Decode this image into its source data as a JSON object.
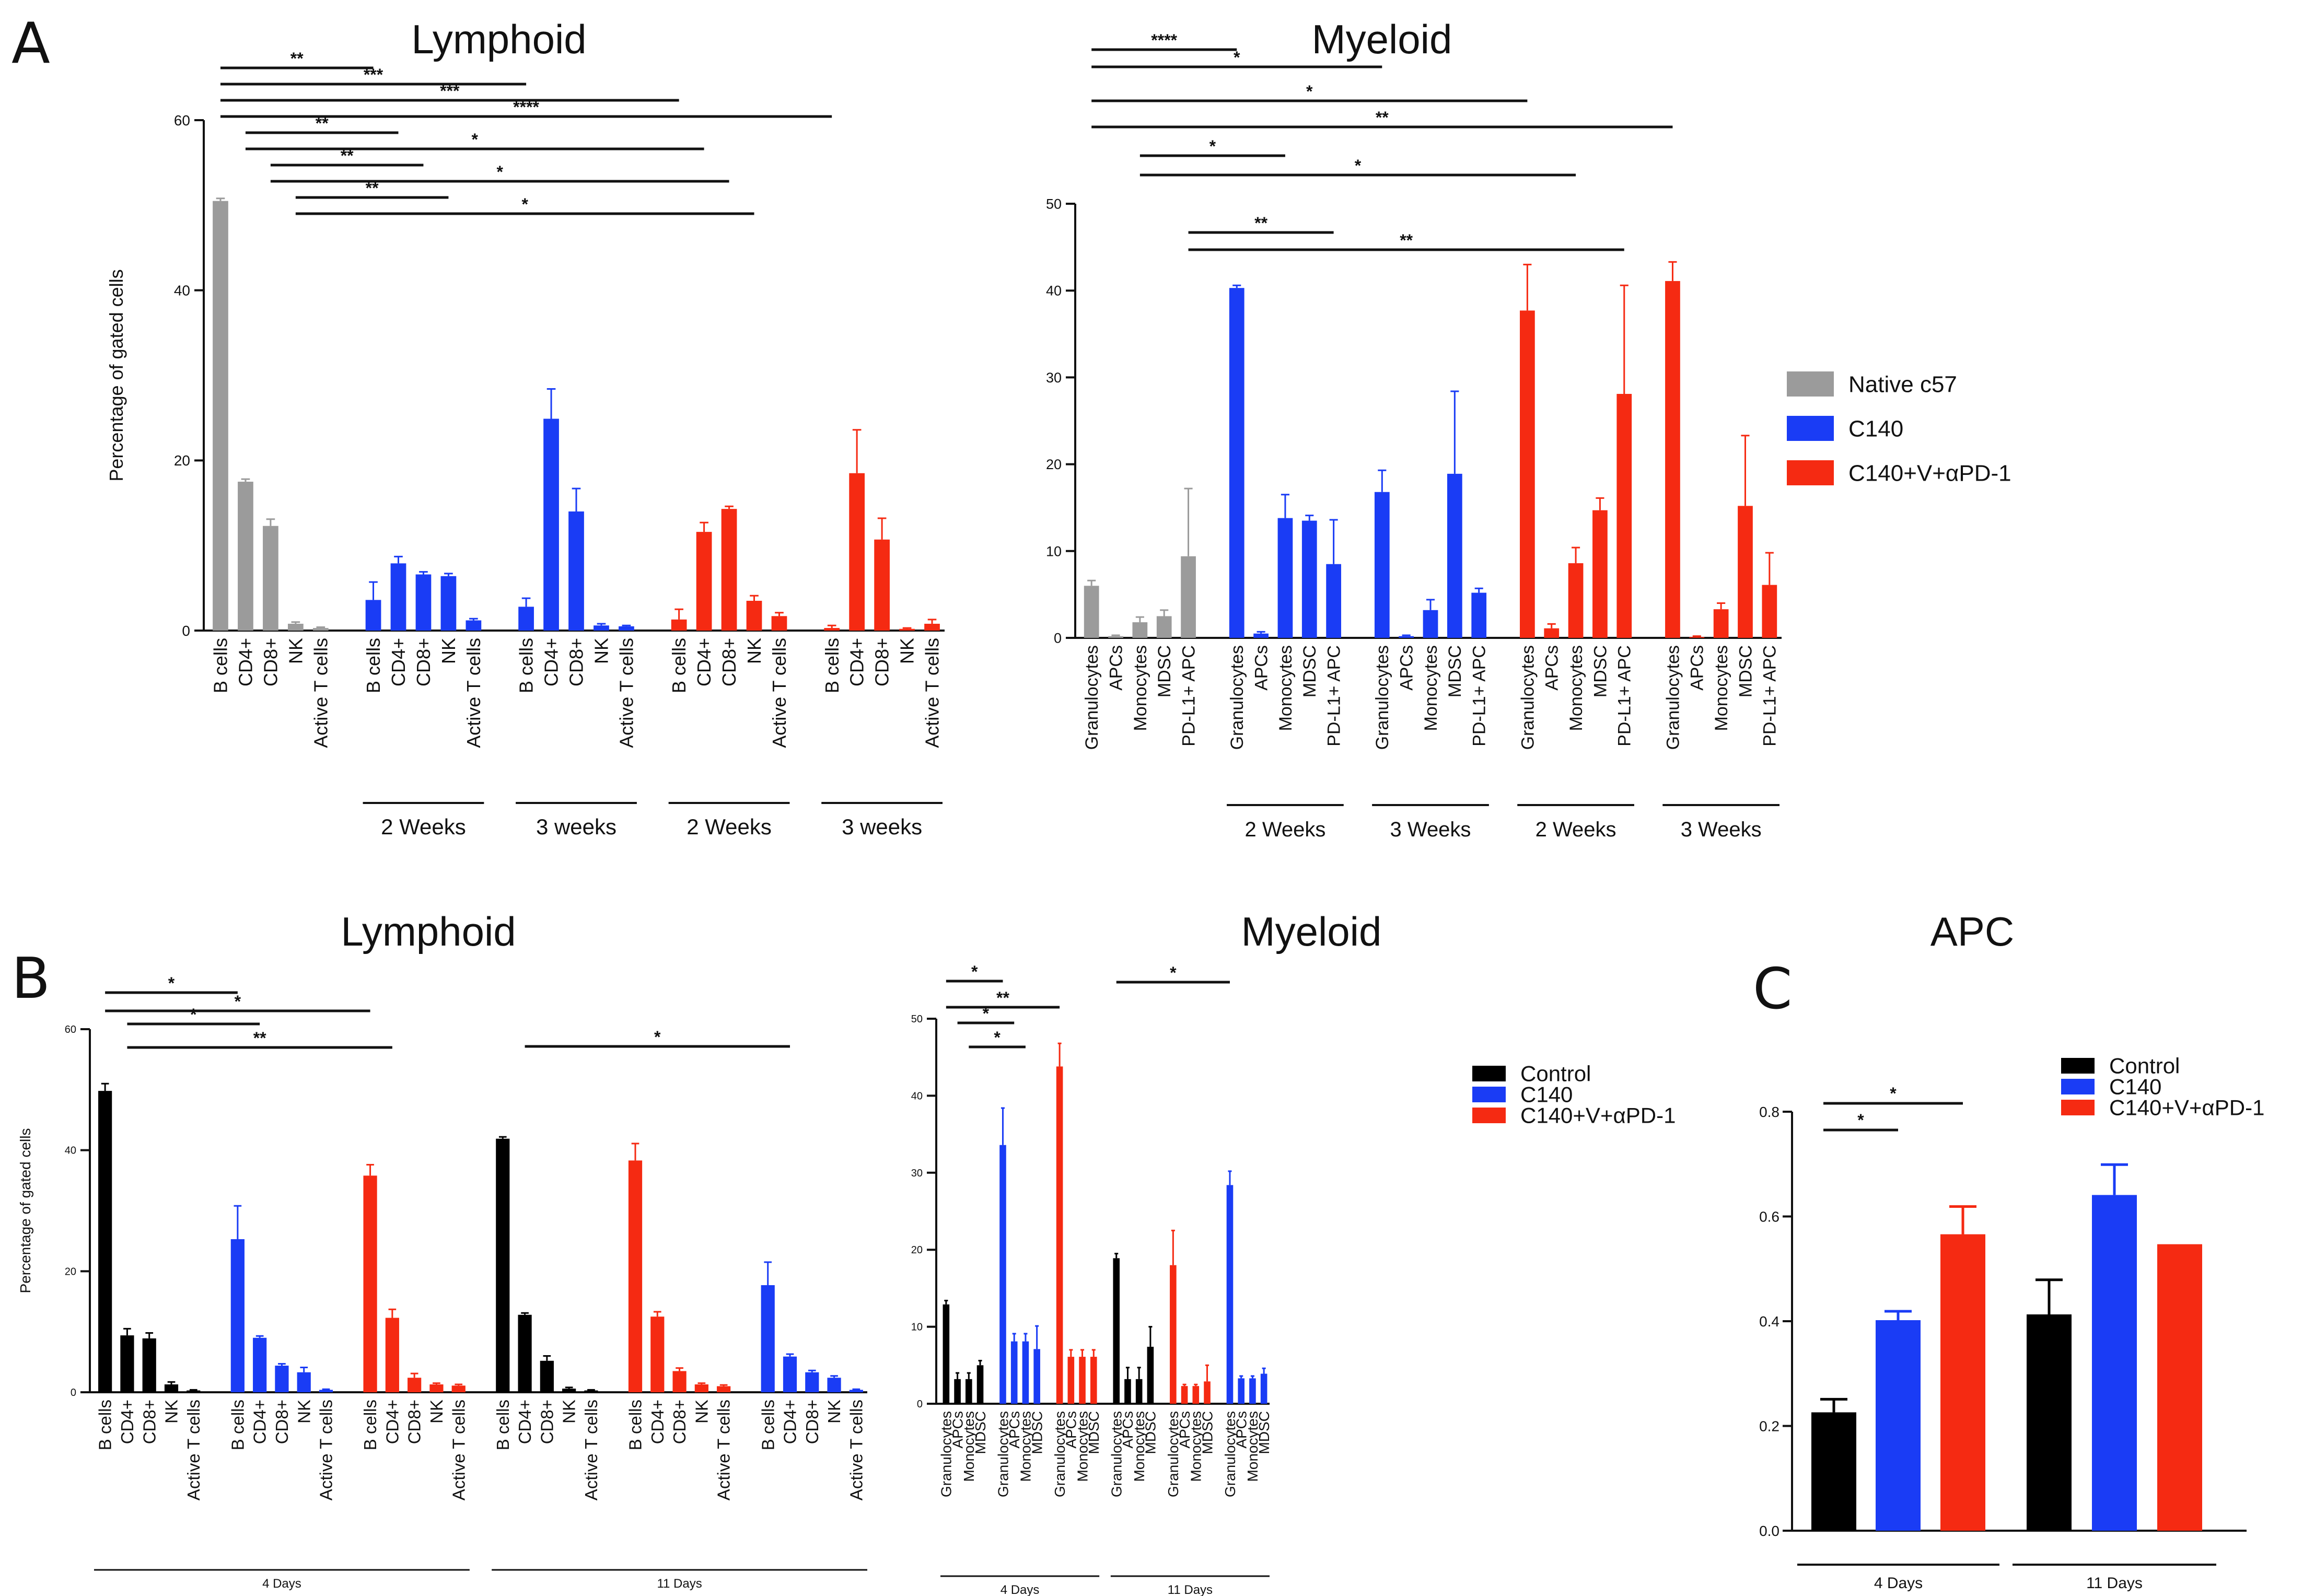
{
  "panels": {
    "a": "A",
    "b": "B",
    "c": "C"
  },
  "colors": {
    "native": "#9b9b9b",
    "control": "#000000",
    "c140": "#1a3cf5",
    "combo": "#f52a12"
  },
  "legend_a": [
    {
      "label": "Native c57",
      "color": "#9b9b9b"
    },
    {
      "label": "C140",
      "color": "#1a3cf5"
    },
    {
      "label": "C140+V+αPD-1",
      "color": "#f52a12"
    }
  ],
  "legend_b": [
    {
      "label": "Control",
      "color": "#000000"
    },
    {
      "label": "C140",
      "color": "#1a3cf5"
    },
    {
      "label": "C140+V+αPD-1",
      "color": "#f52a12"
    }
  ],
  "legend_c": [
    {
      "label": "Control",
      "color": "#000000"
    },
    {
      "label": "C140",
      "color": "#1a3cf5"
    },
    {
      "label": "C140+V+αPD-1",
      "color": "#f52a12"
    }
  ],
  "chart_data": [
    {
      "id": "a_lymphoid",
      "type": "bar",
      "title": "Lymphoid",
      "ylabel": "Percentage of gated cells",
      "ylim": [
        0,
        60
      ],
      "yticks": [
        0,
        20,
        40,
        60
      ],
      "categories": [
        "B cells",
        "CD4+",
        "CD8+",
        "NK",
        "Active T cells",
        "B cells",
        "CD4+",
        "CD8+",
        "NK",
        "Active T cells",
        "B cells",
        "CD4+",
        "CD8+",
        "NK",
        "Active T cells",
        "B cells",
        "CD4+",
        "CD8+",
        "NK",
        "Active T cells",
        "B cells",
        "CD4+",
        "CD8+",
        "NK",
        "Active T cells"
      ],
      "groups": [
        {
          "name": "Native c57",
          "label": "",
          "color": "#9b9b9b",
          "values": [
            50.5,
            17.5,
            12.3,
            0.8,
            0.3
          ],
          "errors": [
            0.3,
            0.3,
            0.8,
            0.2,
            0.1
          ]
        },
        {
          "name": "C140",
          "label": "2 Weeks",
          "color": "#1a3cf5",
          "values": [
            3.6,
            7.9,
            6.6,
            6.4,
            1.2
          ],
          "errors": [
            2.1,
            0.8,
            0.3,
            0.3,
            0.2
          ]
        },
        {
          "name": "C140",
          "label": "3 weeks",
          "color": "#1a3cf5",
          "values": [
            2.8,
            24.9,
            14.0,
            0.6,
            0.5
          ],
          "errors": [
            1.0,
            3.5,
            2.7,
            0.2,
            0.1
          ]
        },
        {
          "name": "C140+V+αPD-1",
          "label": "2 Weeks",
          "color": "#f52a12",
          "values": [
            1.3,
            11.6,
            14.3,
            3.5,
            1.7
          ],
          "errors": [
            1.2,
            1.1,
            0.3,
            0.6,
            0.4
          ]
        },
        {
          "name": "C140+V+αPD-1",
          "label": "3 weeks",
          "color": "#f52a12",
          "values": [
            0.3,
            18.5,
            10.7,
            0.2,
            0.8
          ],
          "errors": [
            0.3,
            5.1,
            2.5,
            0.1,
            0.5
          ]
        }
      ],
      "sig": [
        {
          "from": 0,
          "to": 5,
          "label": "**"
        },
        {
          "from": 0,
          "to": 10,
          "label": "***"
        },
        {
          "from": 0,
          "to": 15,
          "label": "***"
        },
        {
          "from": 0,
          "to": 20,
          "label": "****"
        },
        {
          "from": 1,
          "to": 6,
          "label": "**"
        },
        {
          "from": 1,
          "to": 16,
          "label": "*"
        },
        {
          "from": 2,
          "to": 7,
          "label": "**"
        },
        {
          "from": 2,
          "to": 17,
          "label": "*"
        },
        {
          "from": 3,
          "to": 8,
          "label": "**"
        },
        {
          "from": 3,
          "to": 18,
          "label": "*"
        }
      ]
    },
    {
      "id": "a_myeloid",
      "type": "bar",
      "title": "Myeloid",
      "ylabel": "",
      "ylim": [
        0,
        50
      ],
      "yticks": [
        0,
        10,
        20,
        30,
        40,
        50
      ],
      "categories": [
        "Granulocytes",
        "APCs",
        "Monocytes",
        "MDSC",
        "PD-L1+ APC",
        "Granulocytes",
        "APCs",
        "Monocytes",
        "MDSC",
        "PD-L1+ APC",
        "Granulocytes",
        "APCs",
        "Monocytes",
        "MDSC",
        "PD-L1+ APC",
        "Granulocytes",
        "APCs",
        "Monocytes",
        "MDSC",
        "PD-L1+ APC",
        "Granulocytes",
        "APCs",
        "Monocytes",
        "MDSC",
        "PD-L1+ APC"
      ],
      "groups": [
        {
          "name": "Native c57",
          "label": "",
          "color": "#9b9b9b",
          "values": [
            6.0,
            0.2,
            1.8,
            2.5,
            9.4
          ],
          "errors": [
            0.6,
            0.1,
            0.6,
            0.7,
            7.8
          ]
        },
        {
          "name": "C140",
          "label": "2 Weeks",
          "color": "#1a3cf5",
          "values": [
            40.3,
            0.5,
            13.8,
            13.5,
            8.5
          ],
          "errors": [
            0.3,
            0.2,
            2.7,
            0.6,
            5.1
          ]
        },
        {
          "name": "C140",
          "label": "3 Weeks",
          "color": "#1a3cf5",
          "values": [
            16.8,
            0.2,
            3.2,
            18.9,
            5.2
          ],
          "errors": [
            2.5,
            0.1,
            1.2,
            9.5,
            0.5
          ]
        },
        {
          "name": "C140+V+αPD-1",
          "label": "2 Weeks",
          "color": "#f52a12",
          "values": [
            37.7,
            1.1,
            8.6,
            14.7,
            28.1
          ],
          "errors": [
            5.3,
            0.5,
            1.8,
            1.4,
            12.5
          ]
        },
        {
          "name": "C140+V+αPD-1",
          "label": "3 Weeks",
          "color": "#f52a12",
          "values": [
            41.1,
            0.1,
            3.3,
            15.2,
            6.1
          ],
          "errors": [
            2.2,
            0.1,
            0.7,
            8.1,
            3.7
          ]
        }
      ],
      "sig": [
        {
          "from": 0,
          "to": 5,
          "label": "****"
        },
        {
          "from": 0,
          "to": 10,
          "label": "*"
        },
        {
          "from": 0,
          "to": 15,
          "label": "*"
        },
        {
          "from": 0,
          "to": 20,
          "label": "**"
        },
        {
          "from": 2,
          "to": 7,
          "label": "*"
        },
        {
          "from": 2,
          "to": 17,
          "label": "*"
        },
        {
          "from": 4,
          "to": 9,
          "label": "**"
        },
        {
          "from": 4,
          "to": 19,
          "label": "**"
        }
      ]
    },
    {
      "id": "b_lymphoid",
      "type": "bar",
      "title": "Lymphoid",
      "ylabel": "Percentage of gated cells",
      "ylim": [
        0,
        60
      ],
      "yticks": [
        0,
        20,
        40,
        60
      ],
      "categories": [
        "B cells",
        "CD4+",
        "CD8+",
        "NK",
        "Active T cells",
        "B cells",
        "CD4+",
        "CD8+",
        "NK",
        "Active T cells",
        "B cells",
        "CD4+",
        "CD8+",
        "NK",
        "Active T cells",
        "B cells",
        "CD4+",
        "CD8+",
        "NK",
        "Active T cells",
        "B cells",
        "CD4+",
        "CD8+",
        "NK",
        "Active T cells",
        "B cells",
        "CD4+",
        "CD8+",
        "NK",
        "Active T cells"
      ],
      "groups": [
        {
          "name": "Control",
          "color": "#000000",
          "values": [
            49.8,
            9.4,
            8.9,
            1.3,
            0.3
          ],
          "errors": [
            1.2,
            1.1,
            0.9,
            0.4,
            0.1
          ]
        },
        {
          "name": "C140",
          "color": "#1a3cf5",
          "values": [
            25.3,
            9.0,
            4.4,
            3.3,
            0.4
          ],
          "errors": [
            5.5,
            0.3,
            0.3,
            0.8,
            0.1
          ]
        },
        {
          "name": "C140+V+αPD-1",
          "color": "#f52a12",
          "values": [
            35.8,
            12.3,
            2.4,
            1.3,
            1.1
          ],
          "errors": [
            1.8,
            1.4,
            0.7,
            0.2,
            0.2
          ]
        },
        {
          "name": "Control",
          "color": "#000000",
          "values": [
            41.9,
            12.8,
            5.2,
            0.6,
            0.3
          ],
          "errors": [
            0.3,
            0.3,
            0.8,
            0.2,
            0.1
          ]
        },
        {
          "name": "C140+V+αPD-1",
          "color": "#f52a12",
          "values": [
            38.3,
            12.5,
            3.5,
            1.3,
            1.0
          ],
          "errors": [
            2.8,
            0.8,
            0.5,
            0.2,
            0.2
          ]
        },
        {
          "name": "C140",
          "color": "#1a3cf5",
          "values": [
            17.7,
            5.9,
            3.3,
            2.4,
            0.4
          ],
          "errors": [
            3.8,
            0.4,
            0.3,
            0.3,
            0.1
          ]
        }
      ],
      "timepoints": [
        {
          "label": "4 Days",
          "from": 0,
          "to": 14
        },
        {
          "label": "11 Days",
          "from": 15,
          "to": 29
        }
      ],
      "sig": [
        {
          "from": 0,
          "to": 5,
          "label": "*"
        },
        {
          "from": 0,
          "to": 10,
          "label": "*"
        },
        {
          "from": 1,
          "to": 6,
          "label": "*"
        },
        {
          "from": 1,
          "to": 11,
          "label": "**"
        },
        {
          "from": 16,
          "to": 26,
          "label": "*"
        }
      ]
    },
    {
      "id": "b_myeloid",
      "type": "bar",
      "title": "Myeloid",
      "ylabel": "",
      "ylim": [
        0,
        50
      ],
      "yticks": [
        0,
        10,
        20,
        30,
        40,
        50
      ],
      "categories": [
        "Granulocytes",
        "APCs",
        "Monocytes",
        "MDSC",
        "Granulocytes",
        "APCs",
        "Monocytes",
        "MDSC",
        "Granulocytes",
        "APCs",
        "Monocytes",
        "MDSC",
        "Granulocytes",
        "APCs",
        "Monocytes",
        "MDSC",
        "Granulocytes",
        "APCs",
        "Monocytes",
        "MDSC",
        "Granulocytes",
        "APCs",
        "Monocytes",
        "MDSC"
      ],
      "groups": [
        {
          "name": "Control",
          "color": "#000000",
          "values": [
            12.9,
            3.2,
            3.2,
            5.0
          ],
          "errors": [
            0.5,
            0.8,
            0.8,
            0.6
          ]
        },
        {
          "name": "C140",
          "color": "#1a3cf5",
          "values": [
            33.6,
            8.1,
            8.1,
            7.1
          ],
          "errors": [
            4.8,
            1.0,
            1.0,
            3.0
          ]
        },
        {
          "name": "C140+V+αPD-1",
          "color": "#f52a12",
          "values": [
            43.8,
            6.1,
            6.1,
            6.1
          ],
          "errors": [
            3.0,
            0.9,
            0.9,
            0.9
          ]
        },
        {
          "name": "Control",
          "color": "#000000",
          "values": [
            18.9,
            3.2,
            3.2,
            7.4
          ],
          "errors": [
            0.6,
            1.5,
            1.5,
            2.6
          ]
        },
        {
          "name": "C140+V+αPD-1",
          "color": "#f52a12",
          "values": [
            18.0,
            2.3,
            2.3,
            2.9
          ],
          "errors": [
            4.5,
            0.2,
            0.2,
            2.1
          ]
        },
        {
          "name": "C140",
          "color": "#1a3cf5",
          "values": [
            28.4,
            3.3,
            3.3,
            3.9
          ],
          "errors": [
            1.8,
            0.3,
            0.3,
            0.7
          ]
        }
      ],
      "timepoints": [
        {
          "label": "4 Days",
          "from": 0,
          "to": 11
        },
        {
          "label": "11 Days",
          "from": 12,
          "to": 23
        }
      ],
      "sig": [
        {
          "from": 0,
          "to": 4,
          "label": "*"
        },
        {
          "from": 0,
          "to": 8,
          "label": "**"
        },
        {
          "from": 1,
          "to": 5,
          "label": "*"
        },
        {
          "from": 2,
          "to": 6,
          "label": "*"
        },
        {
          "from": 12,
          "to": 20,
          "label": "*"
        }
      ]
    },
    {
      "id": "c_apc",
      "type": "bar",
      "title": "APC",
      "ylabel": "",
      "ylim": [
        0,
        0.8
      ],
      "yticks": [
        0.0,
        0.2,
        0.4,
        0.6,
        0.8
      ],
      "categories": [
        "Control",
        "C140",
        "C140+V+αPD-1",
        "Control",
        "C140",
        "C140+V+αPD-1"
      ],
      "values": [
        0.226,
        0.402,
        0.566,
        0.413,
        0.641,
        0.547
      ],
      "errors": [
        0.025,
        0.017,
        0.053,
        0.066,
        0.058,
        0.0
      ],
      "colors": [
        "#000000",
        "#1a3cf5",
        "#f52a12",
        "#000000",
        "#1a3cf5",
        "#f52a12"
      ],
      "timepoints": [
        {
          "label": "4 Days",
          "from": 0,
          "to": 2
        },
        {
          "label": "11 Days",
          "from": 3,
          "to": 5
        }
      ],
      "sig": [
        {
          "from": 0,
          "to": 1,
          "label": "*"
        },
        {
          "from": 0,
          "to": 2,
          "label": "*"
        }
      ]
    }
  ]
}
